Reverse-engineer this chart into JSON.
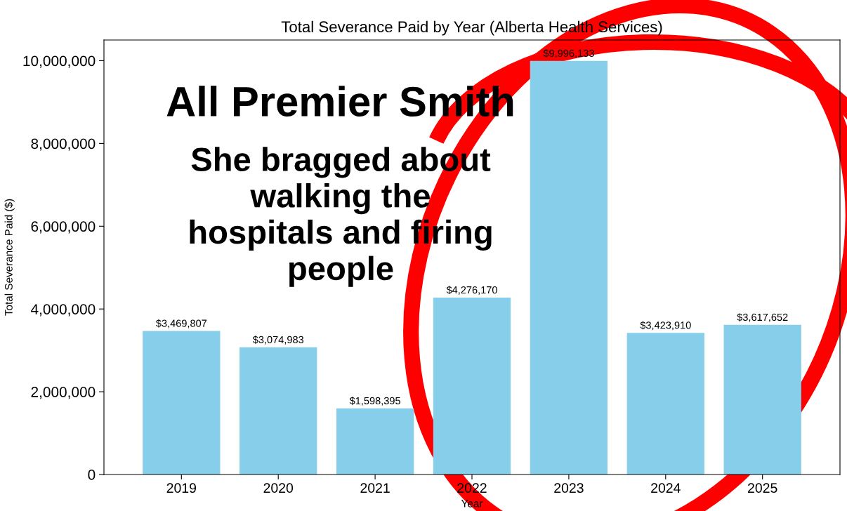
{
  "chart_data": {
    "type": "bar",
    "title": "Total Severance Paid by Year (Alberta Health Services)",
    "xlabel": "Year",
    "ylabel": "Total Severance Paid ($)",
    "categories": [
      "2019",
      "2020",
      "2021",
      "2022",
      "2023",
      "2024",
      "2025"
    ],
    "values": [
      3469807,
      3074983,
      1598395,
      4276170,
      9996133,
      3423910,
      3617652
    ],
    "value_labels": [
      "$3,469,807",
      "$3,074,983",
      "$1,598,395",
      "$4,276,170",
      "$9,996,133",
      "$3,423,910",
      "$3,617,652"
    ],
    "color": "#87ceeb",
    "ylim": [
      0,
      10500000
    ],
    "yticks": [
      0,
      {
        "value": 2000000,
        "label": "2,000,000"
      },
      {
        "value": 4000000,
        "label": "4,000,000"
      },
      {
        "value": 6000000,
        "label": "6,000,000"
      },
      {
        "value": 8000000,
        "label": "8,000,000"
      },
      {
        "value": 10000000,
        "label": "10,000,000"
      }
    ],
    "grid": false,
    "legend": false,
    "annotations": [
      "All Premier Smith",
      "She bragged about\nwalking the\nhospitals and firing\npeople"
    ]
  }
}
